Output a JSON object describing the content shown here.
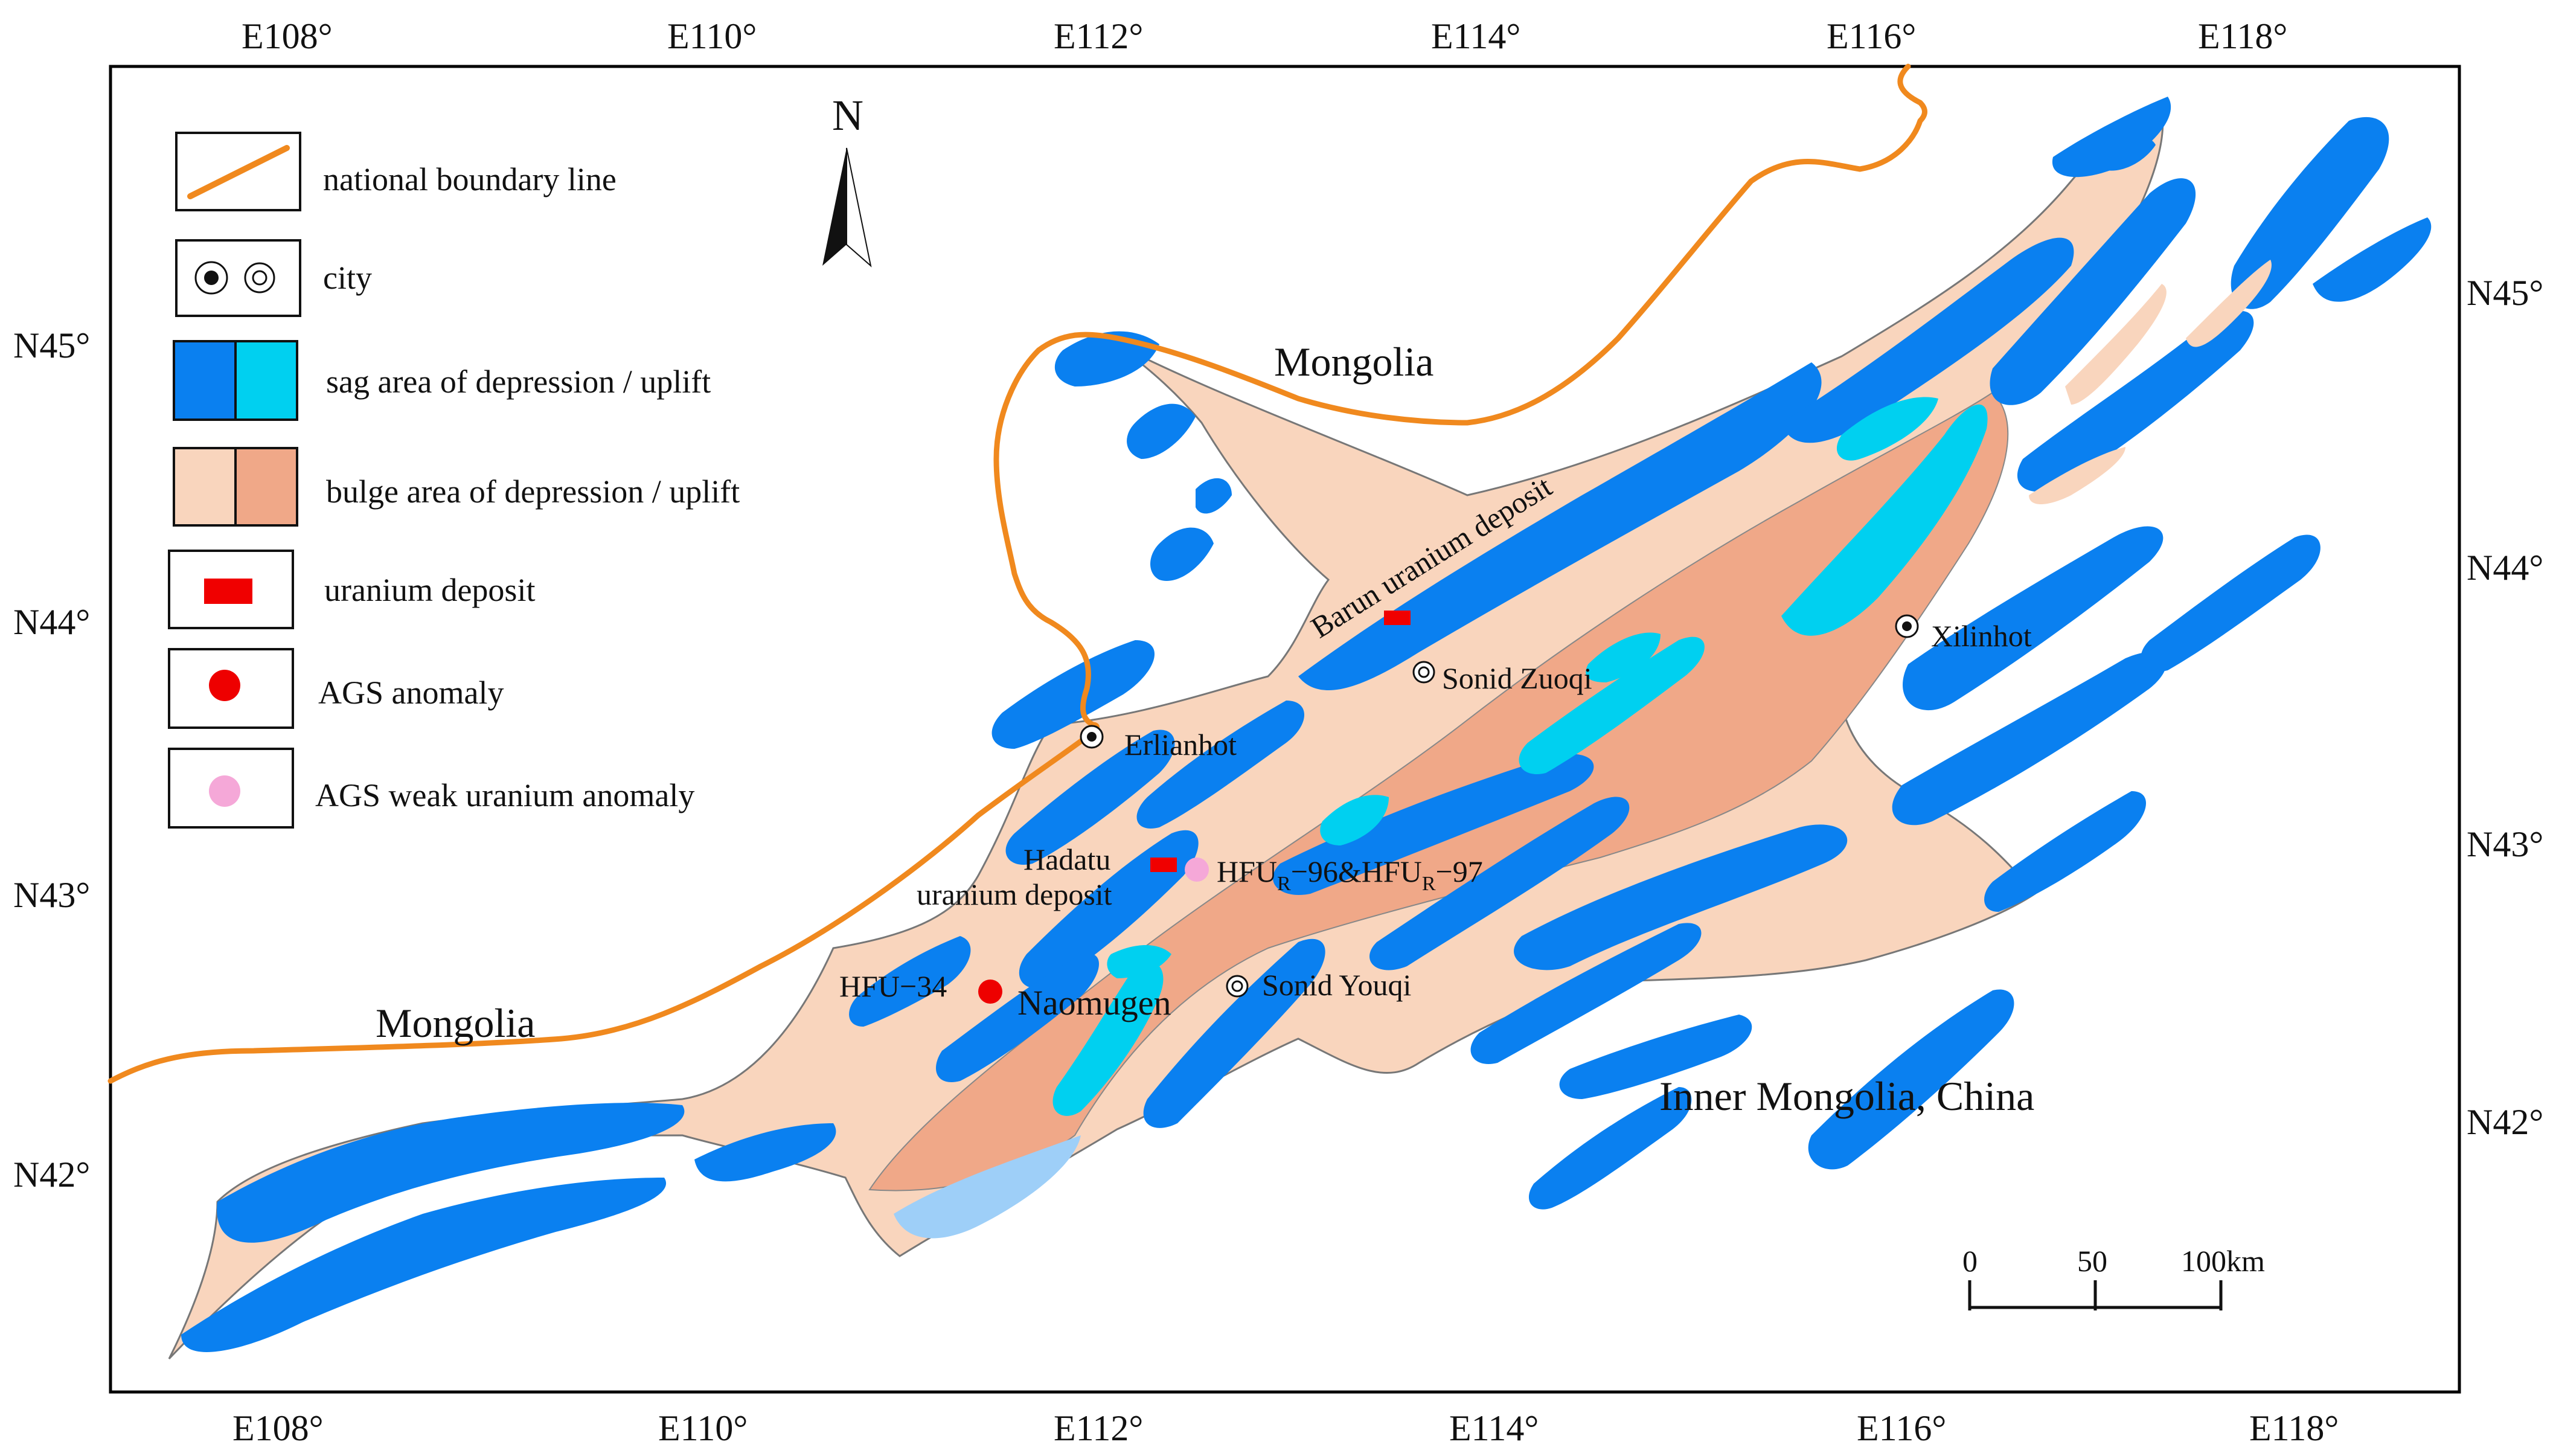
{
  "map": {
    "top_lon_ticks": [
      "E108°",
      "E110°",
      "E112°",
      "E114°",
      "E116°",
      "E118°"
    ],
    "bottom_lon_ticks": [
      "E108°",
      "E110°",
      "E112°",
      "E114°",
      "E116°",
      "E118°"
    ],
    "left_lat_ticks": [
      "N45°",
      "N44°",
      "N43°",
      "N42°"
    ],
    "right_lat_ticks": [
      "N45°",
      "N44°",
      "N43°",
      "N42°"
    ],
    "north_label": "N",
    "regions": {
      "mongolia_north": "Mongolia",
      "mongolia_west": "Mongolia",
      "china": "Inner Mongolia, China"
    },
    "places": {
      "erlianhot": "Erlianhot",
      "xilinhot": "Xilinhot",
      "sonid_zuoqi": "Sonid Zuoqi",
      "sonid_youqi": "Sonid Youqi",
      "naomugen": "Naomugen",
      "hfu34": "HFU−34",
      "hadatu_line1": "Hadatu",
      "hadatu_line2": "uranium deposit",
      "barun": "Barun uranium deposit",
      "hfur_a": "HFU",
      "hfur_sub_a": "R",
      "hfur_b": "−96&HFU",
      "hfur_sub_b": "R",
      "hfur_c": "−97"
    },
    "scale_bar": {
      "labels": [
        "0",
        "50",
        "100km"
      ]
    },
    "colors": {
      "boundary": "#f0891e",
      "sag_depression": "#0a80f0",
      "sag_uplift": "#00d0f0",
      "bulge_depression": "#f9d5bd",
      "bulge_uplift": "#f0a888",
      "light_blue": "#9ecff8",
      "uranium_deposit": "#f00000",
      "ags_anomaly": "#ee0000",
      "ags_weak": "#f5a8d8"
    }
  },
  "legend": {
    "items": [
      {
        "symbol": "boundary-line",
        "label": "national boundary line"
      },
      {
        "symbol": "city",
        "label": "city"
      },
      {
        "symbol": "sag",
        "label": "sag area of depression / uplift"
      },
      {
        "symbol": "bulge",
        "label": "bulge area of depression / uplift"
      },
      {
        "symbol": "uranium",
        "label": "uranium deposit"
      },
      {
        "symbol": "ags",
        "label": "AGS anomaly"
      },
      {
        "symbol": "ags-weak",
        "label": "AGS weak uranium anomaly"
      }
    ]
  }
}
